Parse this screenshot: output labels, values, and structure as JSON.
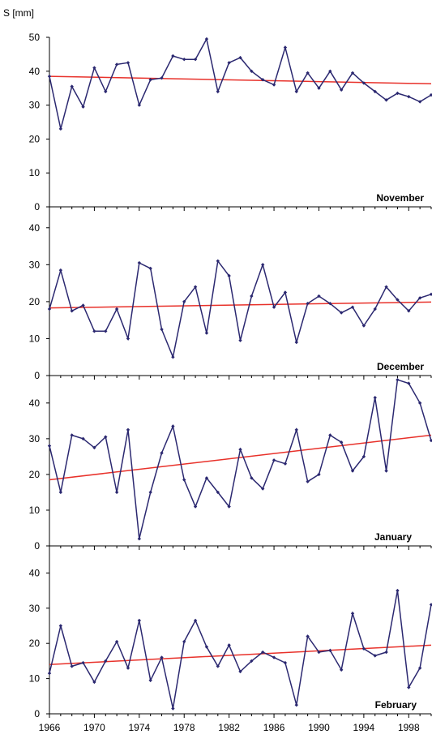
{
  "chart_data": {
    "type": "line",
    "ylabel": "S [mm]",
    "x_tick_labels": [
      "1966",
      "1970",
      "1974",
      "1978",
      "1982",
      "1986",
      "1990",
      "1994",
      "1998"
    ],
    "xlim": [
      1966,
      2000
    ],
    "series_color": "#2b2870",
    "trend_color": "#e8312a",
    "panels": [
      {
        "title": "November",
        "ylim": [
          0,
          50
        ],
        "y_ticks": [
          0,
          10,
          20,
          30,
          40,
          50
        ],
        "x": [
          1966,
          1967,
          1968,
          1969,
          1970,
          1971,
          1972,
          1973,
          1974,
          1975,
          1976,
          1977,
          1978,
          1979,
          1980,
          1981,
          1982,
          1983,
          1984,
          1985,
          1986,
          1987,
          1988,
          1989,
          1990,
          1991,
          1992,
          1993,
          1994,
          1995,
          1996,
          1997,
          1998,
          1999,
          2000
        ],
        "values": [
          38.5,
          23,
          35.5,
          29.5,
          41,
          34,
          42,
          42.5,
          30,
          37.5,
          38,
          44.5,
          43.5,
          43.5,
          49.5,
          34,
          42.5,
          44,
          40,
          37.5,
          36,
          47,
          34,
          39.5,
          35,
          40,
          34.5,
          39.5,
          36.5,
          34,
          31.5,
          33.5,
          32.5,
          31,
          33
        ],
        "trend": [
          38.5,
          36.3
        ]
      },
      {
        "title": "December",
        "ylim": [
          0,
          45
        ],
        "y_ticks": [
          0,
          10,
          20,
          30,
          40
        ],
        "x": [
          1966,
          1967,
          1968,
          1969,
          1970,
          1971,
          1972,
          1973,
          1974,
          1975,
          1976,
          1977,
          1978,
          1979,
          1980,
          1981,
          1982,
          1983,
          1984,
          1985,
          1986,
          1987,
          1988,
          1989,
          1990,
          1991,
          1992,
          1993,
          1994,
          1995,
          1996,
          1997,
          1998,
          1999,
          2000
        ],
        "values": [
          18,
          28.5,
          17.5,
          19,
          12,
          12,
          18,
          10,
          30.5,
          29,
          12.5,
          5,
          20,
          24,
          11.5,
          31,
          27,
          9.5,
          21.5,
          30,
          18.5,
          22.5,
          9,
          19.5,
          21.5,
          19.5,
          17,
          18.5,
          13.5,
          18,
          24,
          20.5,
          17.5,
          21,
          22
        ],
        "trend": [
          18.3,
          19.9
        ]
      },
      {
        "title": "January",
        "ylim": [
          0,
          47
        ],
        "y_ticks": [
          0,
          10,
          20,
          30,
          40
        ],
        "x": [
          1966,
          1967,
          1968,
          1969,
          1970,
          1971,
          1972,
          1973,
          1974,
          1975,
          1976,
          1977,
          1978,
          1979,
          1980,
          1981,
          1982,
          1983,
          1984,
          1985,
          1986,
          1987,
          1988,
          1989,
          1990,
          1991,
          1992,
          1993,
          1994,
          1995,
          1996,
          1997,
          1998,
          1999,
          2000
        ],
        "values": [
          28,
          15,
          31,
          30,
          27.5,
          30.5,
          15,
          32.5,
          2,
          15,
          26,
          33.5,
          18.5,
          11,
          19,
          15,
          11,
          27,
          19,
          16,
          24,
          23,
          32.5,
          18,
          20,
          31,
          29,
          21,
          25,
          41.5,
          21,
          46.5,
          45.5,
          40,
          29.5
        ],
        "trend": [
          18.5,
          31
        ]
      },
      {
        "title": "February",
        "ylim": [
          0,
          47
        ],
        "y_ticks": [
          0,
          10,
          20,
          30,
          40
        ],
        "x": [
          1966,
          1967,
          1968,
          1969,
          1970,
          1971,
          1972,
          1973,
          1974,
          1975,
          1976,
          1977,
          1978,
          1979,
          1980,
          1981,
          1982,
          1983,
          1984,
          1985,
          1986,
          1987,
          1988,
          1989,
          1990,
          1991,
          1992,
          1993,
          1994,
          1995,
          1996,
          1997,
          1998,
          1999,
          2000
        ],
        "values": [
          11.5,
          25,
          13.5,
          14.5,
          9,
          15,
          20.5,
          13,
          26.5,
          9.5,
          16,
          1.5,
          20.5,
          26.5,
          19,
          13.5,
          19.5,
          12,
          15,
          17.5,
          16,
          14.5,
          2.5,
          22,
          17.5,
          18,
          12.5,
          28.5,
          18.5,
          16.5,
          17.5,
          35,
          7.5,
          13,
          31
        ],
        "trend": [
          14,
          19.5
        ]
      }
    ]
  }
}
